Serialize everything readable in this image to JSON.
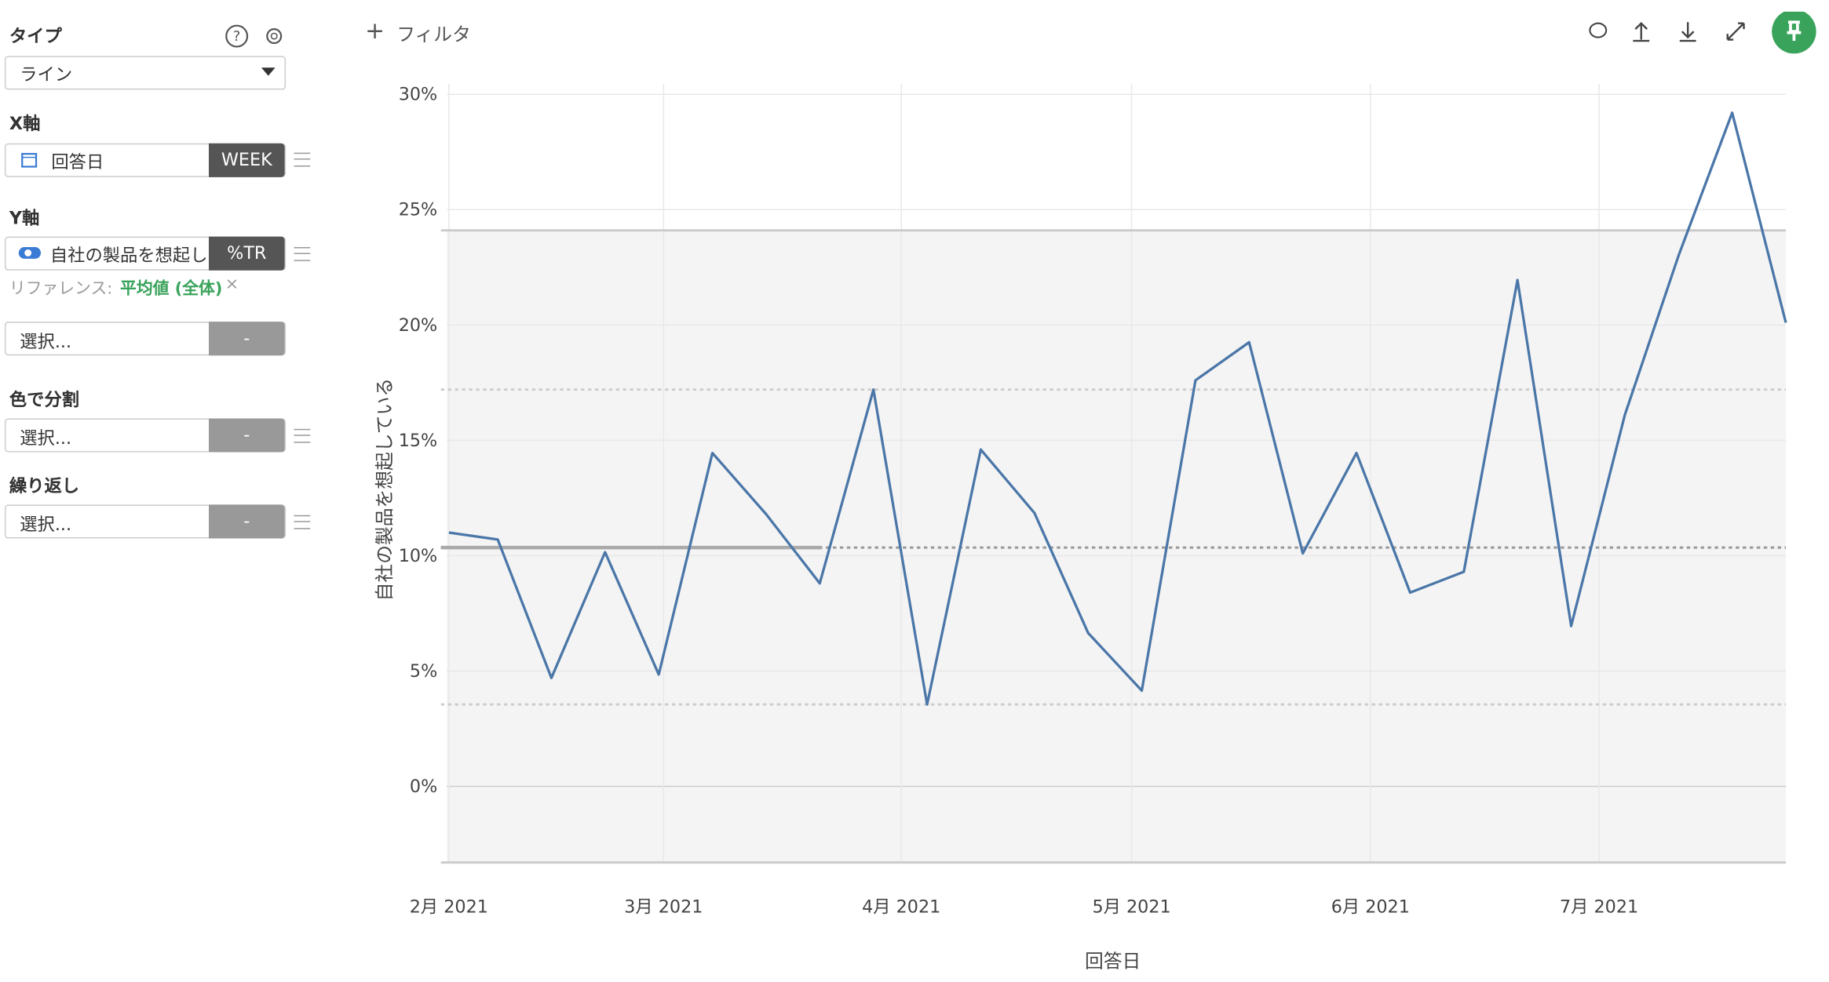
{
  "ui": {
    "type_label": "タイプ",
    "type_value": "ライン",
    "x_label": "X軸",
    "x_field": "回答日",
    "x_unit": "WEEK",
    "y_label": "Y軸",
    "y_field": "自社の製品を想起し",
    "y_unit": "%TR",
    "reference_prefix": "リファレンス:",
    "reference_value": "平均値 (全体)",
    "select1": "選択...",
    "color_label": "色で分割",
    "select2": "選択...",
    "repeat_label": "繰り返し",
    "select3": "選択...",
    "dash": "-",
    "filter": "フィルタ"
  },
  "chart_data": {
    "type": "line",
    "x_label": "回答日",
    "y_label": "自社の製品を想起している",
    "color": "#4a76a8",
    "x": [
      0,
      0.91,
      1.91,
      2.91,
      3.91,
      4.91,
      5.91,
      6.91,
      7.91,
      8.91,
      9.91,
      10.91,
      11.91,
      12.91,
      13.91,
      14.91,
      15.91,
      16.91,
      17.91,
      18.91,
      19.91,
      20.91,
      21.91,
      22.91,
      23.91,
      24.91
    ],
    "values": [
      11.0,
      10.7,
      4.7,
      10.15,
      4.85,
      14.45,
      11.8,
      8.8,
      17.2,
      3.55,
      14.6,
      11.85,
      6.65,
      4.15,
      17.6,
      19.25,
      10.1,
      14.45,
      8.4,
      9.3,
      21.95,
      6.95,
      16.1,
      23.0,
      29.2,
      20.1
    ],
    "xlim": [
      -0.04,
      24.91
    ],
    "xticks": [
      {
        "value": 0,
        "label": "2月 2021"
      },
      {
        "value": 4.0,
        "label": "3月 2021"
      },
      {
        "value": 8.43,
        "label": "4月 2021"
      },
      {
        "value": 12.72,
        "label": "5月 2021"
      },
      {
        "value": 17.17,
        "label": "6月 2021"
      },
      {
        "value": 21.43,
        "label": "7月 2021"
      }
    ],
    "ylim": [
      -3.3,
      30.45
    ],
    "yticks": [
      {
        "value": 0,
        "label": "0%"
      },
      {
        "value": 5,
        "label": "5%"
      },
      {
        "value": 10,
        "label": "10%"
      },
      {
        "value": 15,
        "label": "15%"
      },
      {
        "value": 20,
        "label": "20%"
      },
      {
        "value": 25,
        "label": "25%"
      },
      {
        "value": 30,
        "label": "30%"
      }
    ],
    "grid": true,
    "reference": {
      "mean": 10.35,
      "std_lines": [
        17.2,
        3.55
      ],
      "band": [
        24.1,
        -3.3
      ]
    }
  }
}
